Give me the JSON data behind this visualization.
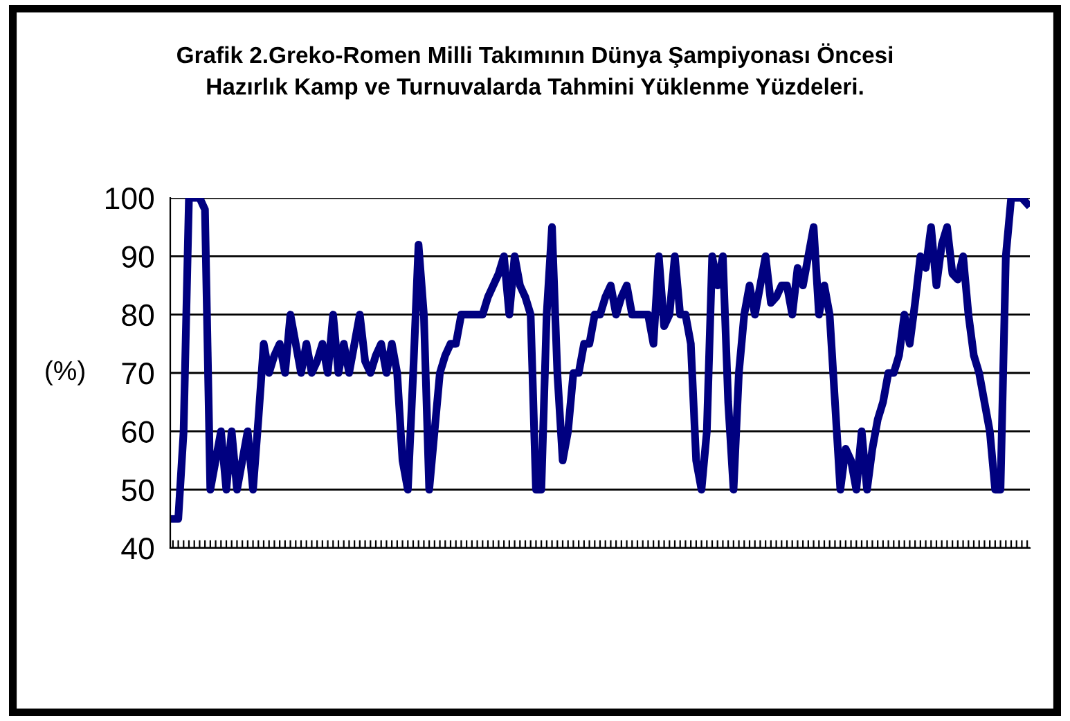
{
  "chart_data": {
    "type": "line",
    "title": "Grafik 2.Greko-Romen Milli Takımının Dünya Şampiyonası Öncesi\nHazırlık Kamp ve Turnuvalarda Tahmini Yüklenme Yüzdeleri.",
    "ylabel": "(%)",
    "categories": [
      null,
      null,
      null,
      null,
      null,
      null,
      null,
      null,
      null,
      null,
      null,
      null,
      null,
      null,
      null,
      null,
      null,
      null,
      null,
      null,
      null,
      null,
      null,
      null,
      null,
      null,
      null,
      null,
      null,
      null,
      null,
      null,
      null,
      null,
      null,
      null,
      null,
      null,
      null,
      null,
      null,
      null,
      null,
      null,
      null,
      null,
      null,
      null,
      null,
      null,
      null,
      null,
      null,
      null,
      null,
      null,
      null,
      null,
      null,
      null,
      null,
      null,
      null,
      null,
      null,
      null,
      null,
      null,
      null,
      null,
      null,
      null,
      null,
      null,
      null,
      null,
      null,
      null,
      null,
      null,
      null,
      null,
      null,
      null,
      null,
      null,
      null,
      null,
      null,
      null,
      null,
      null,
      null,
      null,
      null,
      null,
      null,
      null,
      null,
      null,
      null,
      null,
      null,
      null,
      null,
      null,
      null,
      null,
      null,
      null,
      null,
      null,
      null,
      null,
      null,
      null,
      null,
      null,
      null,
      null,
      null,
      null,
      null,
      null,
      null,
      null,
      null,
      null,
      null,
      null,
      null,
      null,
      null,
      null,
      null,
      null,
      null,
      null,
      null,
      null,
      null,
      null,
      null,
      null,
      null,
      null,
      null,
      null,
      null,
      null,
      null,
      null,
      null,
      null,
      null,
      null,
      null,
      null,
      null,
      null,
      null
    ],
    "series": [
      {
        "color": "#000080",
        "values": [
          45,
          45,
          60,
          100,
          100,
          100,
          98,
          50,
          55,
          60,
          50,
          60,
          50,
          55,
          60,
          50,
          62,
          75,
          70,
          73,
          75,
          70,
          80,
          75,
          70,
          75,
          70,
          72,
          75,
          70,
          80,
          70,
          75,
          70,
          75,
          80,
          72,
          70,
          73,
          75,
          70,
          75,
          70,
          55,
          50,
          70,
          92,
          80,
          50,
          60,
          70,
          73,
          75,
          75,
          80,
          80,
          80,
          80,
          80,
          83,
          85,
          87,
          90,
          80,
          90,
          85,
          83,
          80,
          50,
          50,
          80,
          95,
          70,
          55,
          60,
          70,
          70,
          75,
          75,
          80,
          80,
          83,
          85,
          80,
          83,
          85,
          80,
          80,
          80,
          80,
          75,
          90,
          78,
          80,
          90,
          80,
          80,
          75,
          55,
          50,
          60,
          90,
          85,
          90,
          65,
          50,
          70,
          80,
          85,
          80,
          85,
          90,
          82,
          83,
          85,
          85,
          80,
          88,
          85,
          90,
          95,
          80,
          85,
          80,
          65,
          50,
          57,
          55,
          50,
          60,
          50,
          57,
          62,
          65,
          70,
          70,
          73,
          80,
          75,
          82,
          90,
          88,
          95,
          85,
          92,
          95,
          87,
          86,
          90,
          80,
          73,
          70,
          65,
          60,
          50,
          50,
          90,
          100,
          100,
          100,
          99
        ]
      }
    ],
    "ylim": [
      40,
      100
    ],
    "yticks": [
      40,
      50,
      60,
      70,
      80,
      90,
      100
    ],
    "grid": "y",
    "line_style": "solid",
    "marker": "none"
  }
}
